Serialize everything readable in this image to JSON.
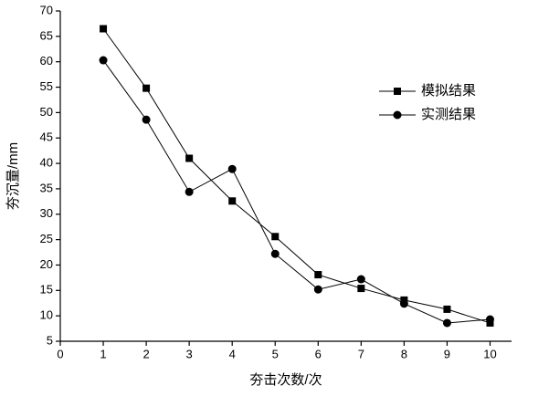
{
  "chart_data": {
    "type": "line",
    "x_label": "夯击次数/次",
    "y_label": "夯沉量/mm",
    "x": [
      1,
      2,
      3,
      4,
      5,
      6,
      7,
      8,
      9,
      10
    ],
    "series": [
      {
        "name": "模拟结果",
        "color": "#000000",
        "marker": "square",
        "values": [
          66.5,
          54.8,
          41,
          32.6,
          25.6,
          18.1,
          15.4,
          13.1,
          11.3,
          8.6
        ]
      },
      {
        "name": "实测结果",
        "color": "#000000",
        "marker": "circle",
        "values": [
          60.3,
          48.6,
          34.4,
          38.9,
          22.2,
          15.2,
          17.2,
          12.4,
          8.6,
          9.3
        ]
      }
    ],
    "xlim": [
      0,
      10.5
    ],
    "ylim": [
      5,
      70
    ],
    "xticks": [
      0,
      1,
      2,
      3,
      4,
      5,
      6,
      7,
      8,
      9,
      10
    ],
    "yticks": [
      5,
      10,
      15,
      20,
      25,
      30,
      35,
      40,
      45,
      50,
      55,
      60,
      65,
      70
    ],
    "legend": "upper-right",
    "grid": false
  }
}
